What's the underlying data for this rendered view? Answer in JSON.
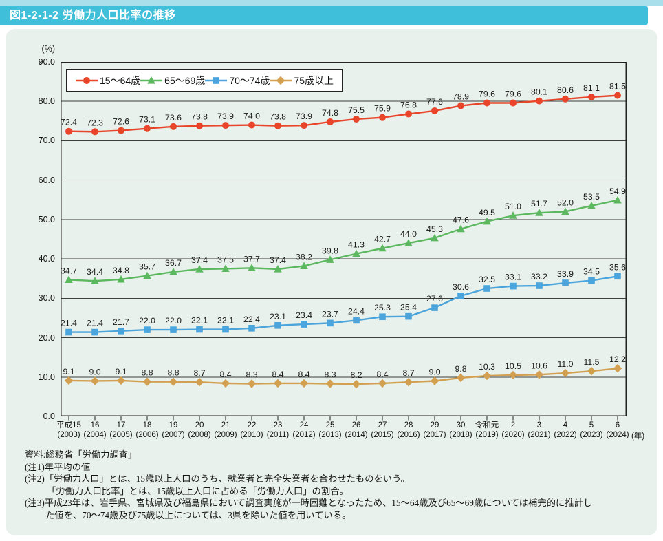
{
  "page": {
    "title": "図1-2-1-2 労働力人口比率の推移"
  },
  "chart_data": {
    "type": "line",
    "title": "労働力人口比率の推移",
    "unit_label": "(%)",
    "year_unit_label": "(年)",
    "ylim": [
      0,
      90
    ],
    "ytick_step": 10,
    "yticks": [
      "90.0",
      "80.0",
      "70.0",
      "60.0",
      "50.0",
      "40.0",
      "30.0",
      "20.0",
      "10.0",
      "0.0"
    ],
    "grid": true,
    "legend_position": "top-left-inside",
    "categories_era": [
      "平成15",
      "16",
      "17",
      "18",
      "19",
      "20",
      "21",
      "22",
      "23",
      "24",
      "25",
      "26",
      "27",
      "28",
      "29",
      "30",
      "令和元",
      "2",
      "3",
      "4",
      "5",
      "6"
    ],
    "categories_year": [
      "(2003)",
      "(2004)",
      "(2005)",
      "(2006)",
      "(2007)",
      "(2008)",
      "(2009)",
      "(2010)",
      "(2011)",
      "(2012)",
      "(2013)",
      "(2014)",
      "(2015)",
      "(2016)",
      "(2017)",
      "(2018)",
      "(2019)",
      "(2020)",
      "(2021)",
      "(2022)",
      "(2023)",
      "(2024)"
    ],
    "series": [
      {
        "name": "15〜64歳",
        "marker": "circle",
        "color": "#e8452b",
        "values": [
          72.4,
          72.3,
          72.6,
          73.1,
          73.6,
          73.8,
          73.9,
          74.0,
          73.8,
          73.9,
          74.8,
          75.5,
          75.9,
          76.8,
          77.6,
          78.9,
          79.6,
          79.6,
          80.1,
          80.6,
          81.1,
          81.5
        ]
      },
      {
        "name": "65〜69歳",
        "marker": "triangle",
        "color": "#5cb85f",
        "values": [
          34.7,
          34.4,
          34.8,
          35.7,
          36.7,
          37.4,
          37.5,
          37.7,
          37.4,
          38.2,
          39.8,
          41.3,
          42.7,
          44.0,
          45.3,
          47.6,
          49.5,
          51.0,
          51.7,
          52.0,
          53.5,
          54.9
        ]
      },
      {
        "name": "70〜74歳",
        "marker": "square",
        "color": "#4ba4db",
        "values": [
          21.4,
          21.4,
          21.7,
          22.0,
          22.0,
          22.1,
          22.1,
          22.4,
          23.1,
          23.4,
          23.7,
          24.4,
          25.3,
          25.4,
          27.6,
          30.6,
          32.5,
          33.1,
          33.2,
          33.9,
          34.5,
          35.6
        ]
      },
      {
        "name": "75歳以上",
        "marker": "diamond",
        "color": "#d2a050",
        "values": [
          9.1,
          9.0,
          9.1,
          8.8,
          8.8,
          8.7,
          8.4,
          8.3,
          8.4,
          8.4,
          8.3,
          8.2,
          8.4,
          8.7,
          9.0,
          9.8,
          10.3,
          10.5,
          10.6,
          11.0,
          11.5,
          12.2
        ]
      }
    ]
  },
  "notes": {
    "source": "資料:総務省「労働力調査」",
    "note1": "(注1)年平均の値",
    "note2_line1": "(注2)「労働力人口」とは、15歳以上人口のうち、就業者と完全失業者を合わせたものをいう。",
    "note2_line2": "「労働力人口比率」とは、15歳以上人口に占める「労働力人口」の割合。",
    "note3_line1": "(注3)平成23年は、岩手県、宮城県及び福島県において調査実施が一時困難となったため、15〜64歳及び65〜69歳については補完的に推計し",
    "note3_line2": "た値を、70〜74歳及び75歳以上については、3県を除いた値を用いている。"
  }
}
